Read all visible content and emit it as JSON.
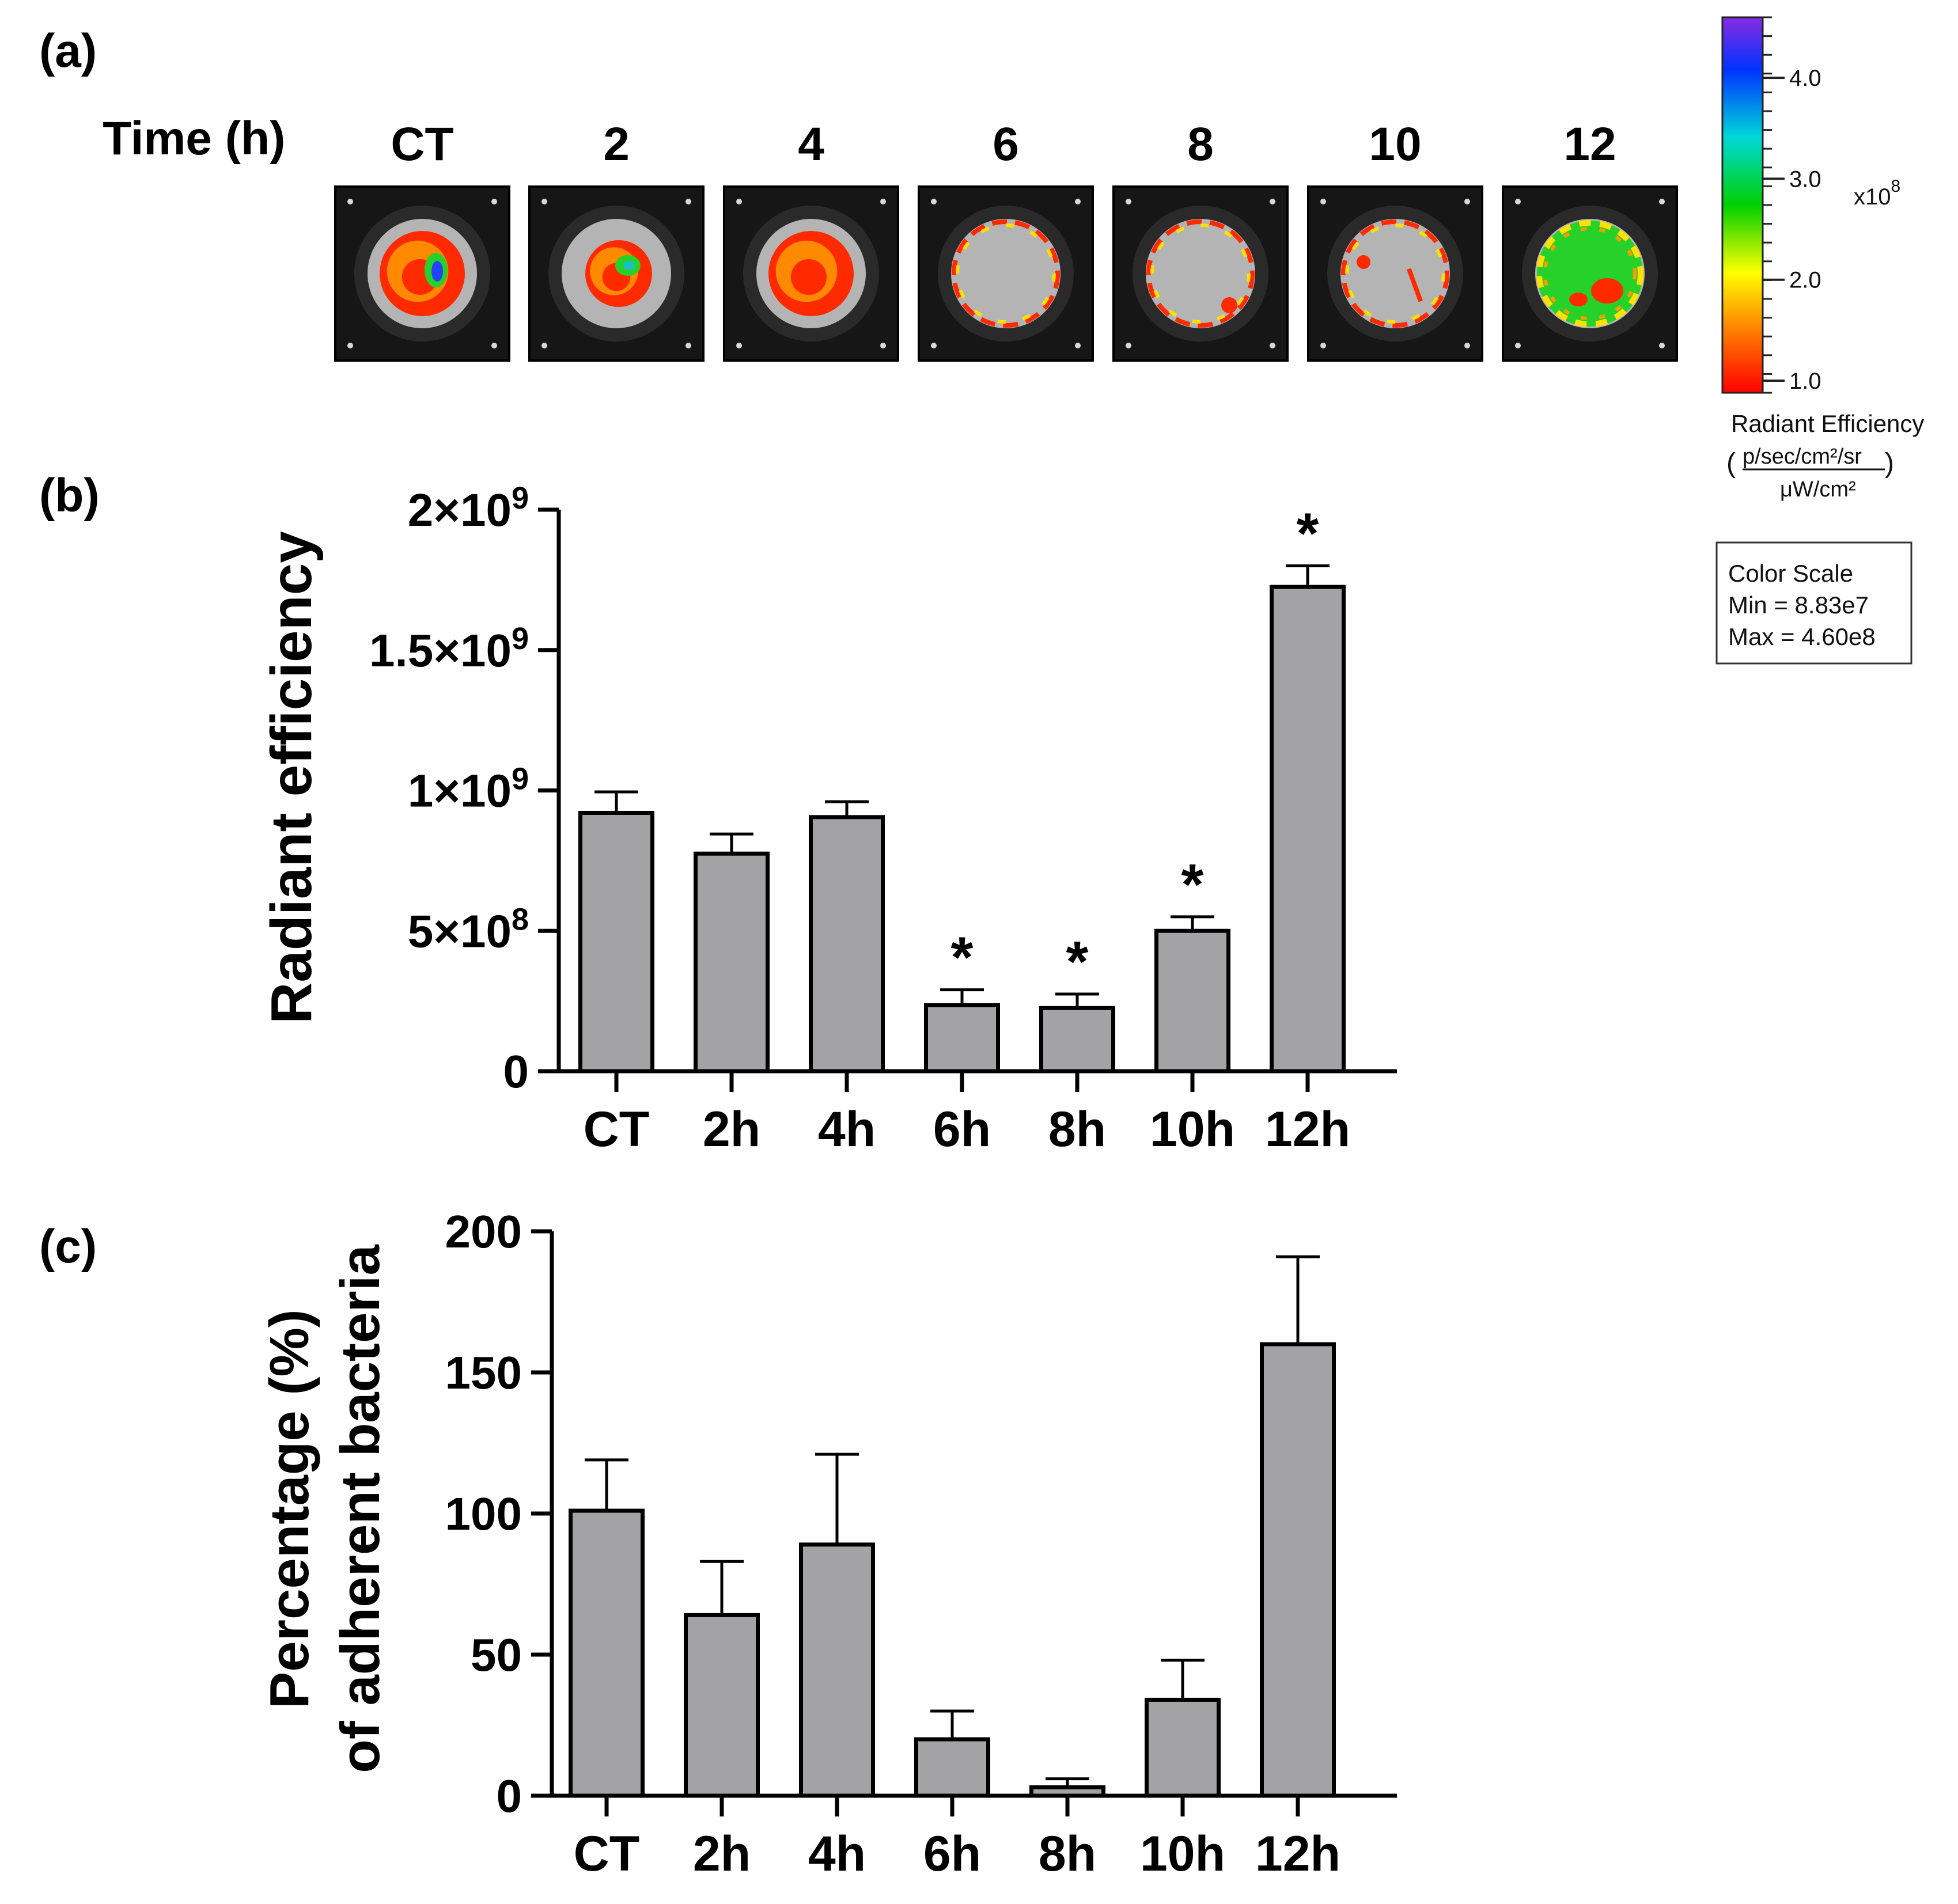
{
  "panel_a": {
    "label": "(a)",
    "time_label": "Time (h)",
    "columns": [
      "CT",
      "2",
      "4",
      "6",
      "8",
      "10",
      "12"
    ],
    "well_colors": {
      "hot": "#ff2a00",
      "mid": "#ff9a00",
      "warm": "#ffe100",
      "green": "#26d12a",
      "cyan": "#19c2c2",
      "blue": "#2244ff",
      "violet": "#8a2be2",
      "tile_bg": "#161616",
      "well_bg": "#b4b4b4"
    },
    "colorbar": {
      "ticks": [
        "4.0",
        "3.0",
        "2.0",
        "1.0"
      ],
      "tick_values": [
        4.0,
        3.0,
        2.0,
        1.0
      ],
      "range": [
        0.88,
        4.6
      ],
      "exponent": "x10",
      "exponent_power": "8",
      "title": "Radiant Efficiency",
      "unit_numerator": "p/sec/cm²/sr",
      "unit_denominator": "μW/cm²",
      "stops": [
        "#ff0000",
        "#ff7a00",
        "#ffff00",
        "#00d000",
        "#00d8d8",
        "#0033ff",
        "#8a2be2"
      ]
    },
    "color_scale_box": {
      "line1": "Color Scale",
      "line2": "Min = 8.83e7",
      "line3": "Max = 4.60e8"
    }
  },
  "chart_data": [
    {
      "panel_label": "(b)",
      "type": "bar",
      "categories": [
        "CT",
        "2h",
        "4h",
        "6h",
        "8h",
        "10h",
        "12h"
      ],
      "values": [
        920000000,
        775000000,
        905000000,
        235000000,
        225000000,
        500000000,
        1725000000
      ],
      "errors": [
        75000000,
        70000000,
        55000000,
        55000000,
        50000000,
        50000000,
        75000000
      ],
      "significance": [
        "",
        "",
        "",
        "*",
        "*",
        "*",
        "*"
      ],
      "ylabel": "Radiant efficiency",
      "xlabel": "",
      "ylim": [
        0,
        2000000000
      ],
      "yticks": [
        0,
        500000000,
        1000000000,
        1500000000,
        2000000000
      ],
      "ytick_labels": [
        {
          "base": "0",
          "exp": ""
        },
        {
          "base": "5×10",
          "exp": "8"
        },
        {
          "base": "1×10",
          "exp": "9"
        },
        {
          "base": "1.5×10",
          "exp": "9"
        },
        {
          "base": "2×10",
          "exp": "9"
        }
      ],
      "bar_color": "#a3a3a6",
      "grid": false
    },
    {
      "panel_label": "(c)",
      "type": "bar",
      "categories": [
        "CT",
        "2h",
        "4h",
        "6h",
        "8h",
        "10h",
        "12h"
      ],
      "values": [
        101,
        64,
        89,
        20,
        3,
        34,
        160
      ],
      "errors": [
        18,
        19,
        32,
        10,
        3,
        14,
        31
      ],
      "significance": [
        "",
        "",
        "",
        "",
        "",
        "",
        ""
      ],
      "ylabel_line1": "Percentage (%)",
      "ylabel_line2": "of adherent bacteria",
      "xlabel": "",
      "ylim": [
        0,
        200
      ],
      "yticks": [
        0,
        50,
        100,
        150,
        200
      ],
      "ytick_labels": [
        {
          "base": "0",
          "exp": ""
        },
        {
          "base": "50",
          "exp": ""
        },
        {
          "base": "100",
          "exp": ""
        },
        {
          "base": "150",
          "exp": ""
        },
        {
          "base": "200",
          "exp": ""
        }
      ],
      "bar_color": "#a3a3a6",
      "grid": false
    }
  ]
}
